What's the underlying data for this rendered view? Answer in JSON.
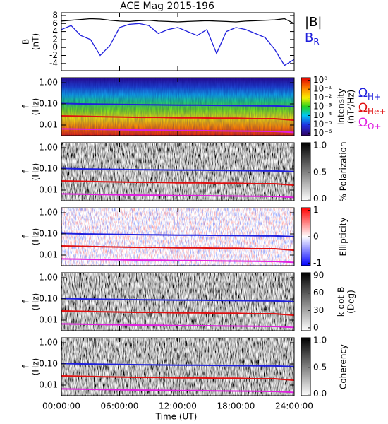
{
  "chart_data": [
    {
      "type": "line",
      "title": "ACE Mag 2015-196",
      "ylabel": [
        "B",
        "(nT)"
      ],
      "x": [
        0,
        1,
        2,
        3,
        4,
        5,
        6,
        7,
        8,
        9,
        10,
        11,
        12,
        13,
        14,
        15,
        16,
        17,
        18,
        19,
        20,
        21,
        22,
        23,
        24
      ],
      "xlim": [
        0,
        24
      ],
      "ylim": [
        -5.8,
        8.7
      ],
      "yticks": [
        -4,
        -2,
        0,
        2,
        4,
        6,
        8
      ],
      "series": [
        {
          "name": "|B|",
          "color": "#000000",
          "values": [
            6.6,
            6.8,
            7.0,
            7.2,
            7.1,
            6.8,
            6.6,
            6.5,
            6.7,
            6.8,
            6.6,
            6.5,
            6.4,
            6.5,
            6.6,
            6.7,
            6.6,
            6.5,
            6.4,
            6.6,
            6.7,
            6.8,
            6.9,
            7.2,
            6.0
          ]
        },
        {
          "name": "B",
          "subscript": "R",
          "color": "#1f1fdc",
          "values": [
            4.5,
            5.5,
            3.0,
            2.0,
            -2.0,
            0.5,
            5.0,
            5.8,
            6.0,
            5.5,
            3.5,
            4.5,
            5.0,
            4.0,
            3.0,
            4.5,
            -1.5,
            4.0,
            5.0,
            4.5,
            3.5,
            2.5,
            -0.5,
            -4.5,
            -3.0
          ]
        }
      ]
    },
    {
      "type": "spectrogram",
      "ylabel": [
        "f",
        "(Hz)"
      ],
      "yscale": "log",
      "ylim": [
        0.00316,
        1.71
      ],
      "yticks": [
        {
          "value": 1,
          "label": "1.00"
        },
        {
          "value": 0.1,
          "label": "0.10"
        },
        0.01
      ],
      "x": [
        0,
        2,
        4,
        6,
        8,
        10,
        12,
        14,
        16,
        18,
        20,
        22,
        24
      ],
      "xlim": [
        0,
        24
      ],
      "colorbar": {
        "label": [
          "Intensity",
          "(nT²/Hz)"
        ],
        "colormap": "rainbow",
        "scale": "log",
        "lim": [
          5e-07,
          2
        ],
        "ticks": [
          {
            "value": 1,
            "label": "10⁰"
          },
          {
            "value": 0.1,
            "label": "10⁻¹"
          },
          {
            "value": 0.01,
            "label": "10⁻²"
          },
          {
            "value": 0.001,
            "label": "10⁻³"
          },
          {
            "value": 0.0001,
            "label": "10⁻⁴"
          },
          {
            "value": 1e-05,
            "label": "10⁻⁵"
          },
          {
            "value": 1e-06,
            "label": "10⁻⁶"
          }
        ]
      },
      "series": [
        {
          "name": "Ω",
          "subscript": "H+",
          "color": "#1f1fdc",
          "values": [
            0.105,
            0.1,
            0.097,
            0.095,
            0.092,
            0.09,
            0.088,
            0.087,
            0.085,
            0.083,
            0.082,
            0.08,
            0.075
          ]
        },
        {
          "name": "Ω",
          "subscript": "He+",
          "color": "#e01010",
          "values": [
            0.027,
            0.026,
            0.025,
            0.024,
            0.023,
            0.023,
            0.022,
            0.022,
            0.021,
            0.021,
            0.02,
            0.02,
            0.017
          ]
        },
        {
          "name": "Ω",
          "subscript": "O+",
          "color": "#e020e0",
          "values": [
            0.0066,
            0.0064,
            0.0062,
            0.006,
            0.0058,
            0.0057,
            0.0055,
            0.0055,
            0.0053,
            0.0052,
            0.0051,
            0.005,
            0.0045
          ]
        }
      ]
    },
    {
      "type": "spectrogram",
      "ylabel": [
        "f",
        "(Hz)"
      ],
      "yscale": "log",
      "ylim": [
        0.00316,
        1.71
      ],
      "yticks": [
        {
          "value": 1,
          "label": "1.00"
        },
        {
          "value": 0.1,
          "label": "0.10"
        },
        0.01
      ],
      "x": [
        0,
        2,
        4,
        6,
        8,
        10,
        12,
        14,
        16,
        18,
        20,
        22,
        24
      ],
      "xlim": [
        0,
        24
      ],
      "colorbar": {
        "label": [
          "% Polarization"
        ],
        "colormap": "gray",
        "scale": "linear",
        "lim": [
          -0.03,
          1.05
        ],
        "ticks": [
          {
            "value": 0,
            "label": "0.0"
          },
          0.5,
          {
            "value": 1,
            "label": "1.0"
          }
        ]
      },
      "series": [
        {
          "color": "#1f1fdc",
          "values": [
            0.105,
            0.1,
            0.097,
            0.095,
            0.092,
            0.09,
            0.088,
            0.087,
            0.085,
            0.083,
            0.082,
            0.08,
            0.075
          ]
        },
        {
          "color": "#e01010",
          "values": [
            0.027,
            0.026,
            0.025,
            0.024,
            0.023,
            0.023,
            0.022,
            0.022,
            0.021,
            0.021,
            0.02,
            0.02,
            0.017
          ]
        },
        {
          "color": "#e020e0",
          "values": [
            0.0066,
            0.0064,
            0.0062,
            0.006,
            0.0058,
            0.0057,
            0.0055,
            0.0055,
            0.0053,
            0.0052,
            0.0051,
            0.005,
            0.0045
          ]
        }
      ]
    },
    {
      "type": "spectrogram",
      "ylabel": [
        "f",
        "(Hz)"
      ],
      "yscale": "log",
      "ylim": [
        0.00316,
        1.71
      ],
      "yticks": [
        {
          "value": 1,
          "label": "1.00"
        },
        {
          "value": 0.1,
          "label": "0.10"
        },
        0.01
      ],
      "x": [
        0,
        2,
        4,
        6,
        8,
        10,
        12,
        14,
        16,
        18,
        20,
        22,
        24
      ],
      "xlim": [
        0,
        24
      ],
      "colorbar": {
        "label": [
          "Ellipticity"
        ],
        "colormap": "bwr",
        "scale": "linear",
        "lim": [
          -1.1,
          1.1
        ],
        "ticks": [
          -1,
          0,
          1
        ]
      },
      "series": [
        {
          "color": "#1f1fdc",
          "values": [
            0.105,
            0.1,
            0.097,
            0.095,
            0.092,
            0.09,
            0.088,
            0.087,
            0.085,
            0.083,
            0.082,
            0.08,
            0.075
          ]
        },
        {
          "color": "#e01010",
          "values": [
            0.027,
            0.026,
            0.025,
            0.024,
            0.023,
            0.023,
            0.022,
            0.022,
            0.021,
            0.021,
            0.02,
            0.02,
            0.017
          ]
        },
        {
          "color": "#e020e0",
          "values": [
            0.0066,
            0.0064,
            0.0062,
            0.006,
            0.0058,
            0.0057,
            0.0055,
            0.0055,
            0.0053,
            0.0052,
            0.0051,
            0.005,
            0.0045
          ]
        }
      ]
    },
    {
      "type": "spectrogram",
      "ylabel": [
        "f",
        "(Hz)"
      ],
      "yscale": "log",
      "ylim": [
        0.00316,
        1.71
      ],
      "yticks": [
        {
          "value": 1,
          "label": "1.00"
        },
        {
          "value": 0.1,
          "label": "0.10"
        },
        0.01
      ],
      "x": [
        0,
        2,
        4,
        6,
        8,
        10,
        12,
        14,
        16,
        18,
        20,
        22,
        24
      ],
      "xlim": [
        0,
        24
      ],
      "colorbar": {
        "label": [
          "k dot B",
          "(Deg)"
        ],
        "colormap": "gray",
        "scale": "linear",
        "lim": [
          -5,
          95
        ],
        "ticks": [
          0,
          30,
          60,
          90
        ]
      },
      "series": [
        {
          "color": "#1f1fdc",
          "values": [
            0.105,
            0.1,
            0.097,
            0.095,
            0.092,
            0.09,
            0.088,
            0.087,
            0.085,
            0.083,
            0.082,
            0.08,
            0.075
          ]
        },
        {
          "color": "#e01010",
          "values": [
            0.027,
            0.026,
            0.025,
            0.024,
            0.023,
            0.023,
            0.022,
            0.022,
            0.021,
            0.021,
            0.02,
            0.02,
            0.017
          ]
        },
        {
          "color": "#e020e0",
          "values": [
            0.0066,
            0.0064,
            0.0062,
            0.006,
            0.0058,
            0.0057,
            0.0055,
            0.0055,
            0.0053,
            0.0052,
            0.0051,
            0.005,
            0.0045
          ]
        }
      ]
    },
    {
      "type": "spectrogram",
      "ylabel": [
        "f",
        "(Hz)"
      ],
      "yscale": "log",
      "ylim": [
        0.00316,
        1.71
      ],
      "yticks": [
        {
          "value": 1,
          "label": "1.00"
        },
        {
          "value": 0.1,
          "label": "0.10"
        },
        0.01
      ],
      "x": [
        0,
        2,
        4,
        6,
        8,
        10,
        12,
        14,
        16,
        18,
        20,
        22,
        24
      ],
      "xlim": [
        0,
        24
      ],
      "xticks": [
        {
          "value": 0,
          "label": "00:00:00"
        },
        {
          "value": 6,
          "label": "06:00:00"
        },
        {
          "value": 12,
          "label": "12:00:00"
        },
        {
          "value": 18,
          "label": "18:00:00"
        },
        {
          "value": 24,
          "label": "24:00:00"
        }
      ],
      "xlabel": "Time (UT)",
      "colorbar": {
        "label": [
          "Coherency"
        ],
        "colormap": "gray",
        "scale": "linear",
        "lim": [
          -0.03,
          1.05
        ],
        "ticks": [
          {
            "value": 0,
            "label": "0.0"
          },
          0.5,
          {
            "value": 1,
            "label": "1.0"
          }
        ]
      },
      "series": [
        {
          "color": "#1f1fdc",
          "values": [
            0.105,
            0.1,
            0.097,
            0.095,
            0.092,
            0.09,
            0.088,
            0.087,
            0.085,
            0.083,
            0.082,
            0.08,
            0.075
          ]
        },
        {
          "color": "#e01010",
          "values": [
            0.027,
            0.026,
            0.025,
            0.024,
            0.023,
            0.023,
            0.022,
            0.022,
            0.021,
            0.021,
            0.02,
            0.02,
            0.017
          ]
        },
        {
          "color": "#e020e0",
          "values": [
            0.0066,
            0.0064,
            0.0062,
            0.006,
            0.0058,
            0.0057,
            0.0055,
            0.0055,
            0.0053,
            0.0052,
            0.0051,
            0.005,
            0.0045
          ]
        }
      ]
    }
  ]
}
